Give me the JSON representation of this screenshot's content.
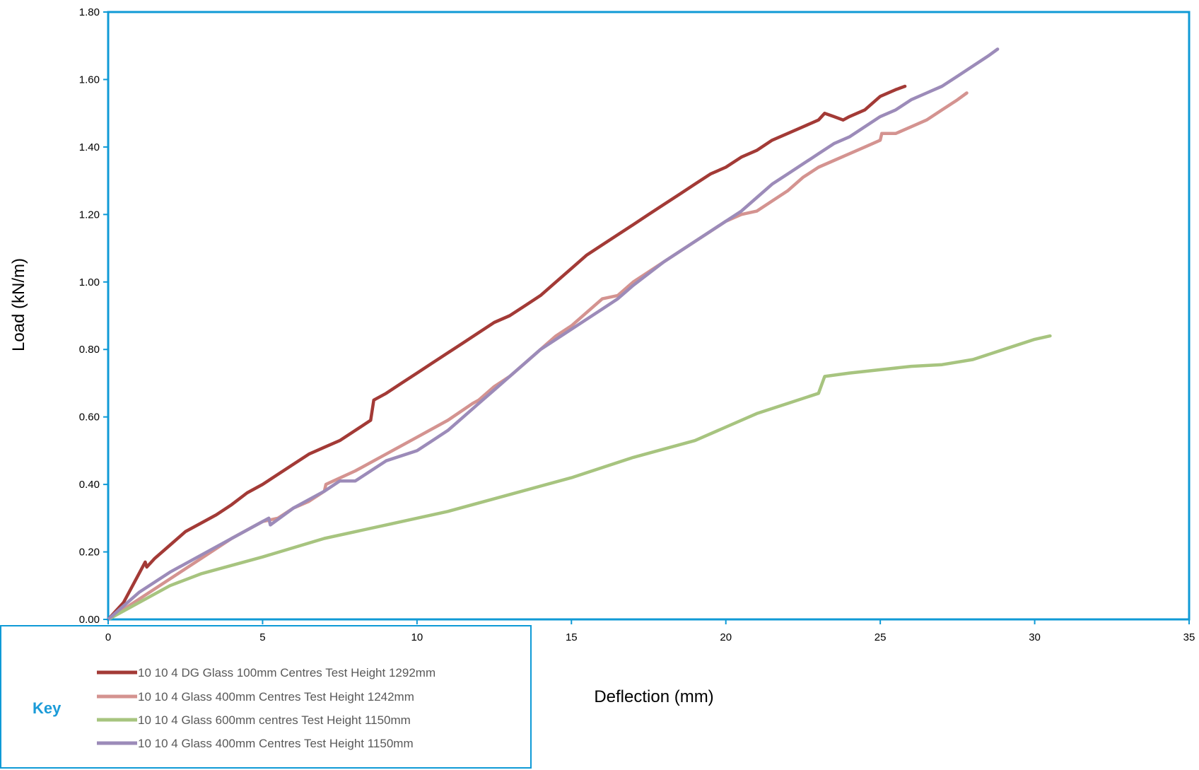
{
  "colors": {
    "frame": "#0f9ad6",
    "key_label": "#1b9bd8",
    "legend_text": "#595959"
  },
  "key_label": "Key",
  "chart_data": {
    "type": "line",
    "title": "",
    "xlabel": "Deflection (mm)",
    "ylabel": "Load (kN/m)",
    "xlim": [
      0,
      35
    ],
    "ylim": [
      0,
      1.8
    ],
    "x_ticks": [
      0,
      5,
      10,
      15,
      20,
      25,
      30,
      35
    ],
    "x_tick_labels": [
      "0",
      "5",
      "10",
      "15",
      "20",
      "25",
      "30",
      "35"
    ],
    "y_ticks": [
      0,
      0.2,
      0.4,
      0.6,
      0.8,
      1.0,
      1.2,
      1.4,
      1.6,
      1.8
    ],
    "y_tick_labels": [
      "0.00",
      "0.20",
      "0.40",
      "0.60",
      "0.80",
      "1.00",
      "1.20",
      "1.40",
      "1.60",
      "1.80"
    ],
    "grid": false,
    "legend_position": "bottom-left",
    "series": [
      {
        "name": "10 10 4 DG Glass 100mm Centres Test Height 1292mm",
        "color": "#a33a36",
        "points": [
          [
            0,
            0
          ],
          [
            0.5,
            0.05
          ],
          [
            1.2,
            0.17
          ],
          [
            1.25,
            0.155
          ],
          [
            1.5,
            0.18
          ],
          [
            2,
            0.22
          ],
          [
            2.5,
            0.26
          ],
          [
            3,
            0.285
          ],
          [
            3.5,
            0.31
          ],
          [
            4,
            0.34
          ],
          [
            4.5,
            0.375
          ],
          [
            5,
            0.4
          ],
          [
            5.5,
            0.43
          ],
          [
            6,
            0.46
          ],
          [
            6.5,
            0.49
          ],
          [
            7,
            0.51
          ],
          [
            7.5,
            0.53
          ],
          [
            8,
            0.56
          ],
          [
            8.5,
            0.59
          ],
          [
            8.6,
            0.65
          ],
          [
            9,
            0.67
          ],
          [
            9.5,
            0.7
          ],
          [
            10,
            0.73
          ],
          [
            10.5,
            0.76
          ],
          [
            11,
            0.79
          ],
          [
            11.5,
            0.82
          ],
          [
            12,
            0.85
          ],
          [
            12.5,
            0.88
          ],
          [
            13,
            0.9
          ],
          [
            13.5,
            0.93
          ],
          [
            14,
            0.96
          ],
          [
            14.5,
            1.0
          ],
          [
            15,
            1.04
          ],
          [
            15.5,
            1.08
          ],
          [
            16,
            1.11
          ],
          [
            16.5,
            1.14
          ],
          [
            17,
            1.17
          ],
          [
            17.5,
            1.2
          ],
          [
            18,
            1.23
          ],
          [
            18.5,
            1.26
          ],
          [
            19,
            1.29
          ],
          [
            19.5,
            1.32
          ],
          [
            20,
            1.34
          ],
          [
            20.5,
            1.37
          ],
          [
            21,
            1.39
          ],
          [
            21.5,
            1.42
          ],
          [
            22,
            1.44
          ],
          [
            22.5,
            1.46
          ],
          [
            23,
            1.48
          ],
          [
            23.2,
            1.5
          ],
          [
            23.5,
            1.49
          ],
          [
            23.8,
            1.48
          ],
          [
            24,
            1.49
          ],
          [
            24.5,
            1.51
          ],
          [
            25,
            1.55
          ],
          [
            25.5,
            1.57
          ],
          [
            25.8,
            1.58
          ]
        ]
      },
      {
        "name": "10 10 4 Glass 400mm Centres Test Height 1242mm",
        "color": "#d49390",
        "points": [
          [
            0,
            0
          ],
          [
            1,
            0.06
          ],
          [
            2,
            0.12
          ],
          [
            3,
            0.18
          ],
          [
            4,
            0.24
          ],
          [
            5,
            0.29
          ],
          [
            5.5,
            0.3
          ],
          [
            6,
            0.33
          ],
          [
            6.5,
            0.35
          ],
          [
            7,
            0.38
          ],
          [
            7.05,
            0.4
          ],
          [
            8,
            0.44
          ],
          [
            9,
            0.49
          ],
          [
            10,
            0.54
          ],
          [
            11,
            0.59
          ],
          [
            11.8,
            0.64
          ],
          [
            12,
            0.65
          ],
          [
            12.5,
            0.69
          ],
          [
            13,
            0.72
          ],
          [
            13.5,
            0.76
          ],
          [
            14,
            0.8
          ],
          [
            14.5,
            0.84
          ],
          [
            15,
            0.87
          ],
          [
            15.5,
            0.91
          ],
          [
            16,
            0.95
          ],
          [
            16.5,
            0.96
          ],
          [
            17,
            1.0
          ],
          [
            17.5,
            1.03
          ],
          [
            18,
            1.06
          ],
          [
            18.5,
            1.09
          ],
          [
            19,
            1.12
          ],
          [
            19.5,
            1.15
          ],
          [
            20,
            1.18
          ],
          [
            20.5,
            1.2
          ],
          [
            21,
            1.21
          ],
          [
            21.5,
            1.24
          ],
          [
            22,
            1.27
          ],
          [
            22.5,
            1.31
          ],
          [
            23,
            1.34
          ],
          [
            23.5,
            1.36
          ],
          [
            24,
            1.38
          ],
          [
            24.5,
            1.4
          ],
          [
            25,
            1.42
          ],
          [
            25.05,
            1.44
          ],
          [
            25.5,
            1.44
          ],
          [
            26,
            1.46
          ],
          [
            26.5,
            1.48
          ],
          [
            27,
            1.51
          ],
          [
            27.5,
            1.54
          ],
          [
            27.8,
            1.56
          ]
        ]
      },
      {
        "name": "10 10 4 Glass 600mm centres Test Height 1150mm",
        "color": "#a7c47f",
        "points": [
          [
            0,
            0
          ],
          [
            1,
            0.05
          ],
          [
            2,
            0.1
          ],
          [
            3,
            0.135
          ],
          [
            5,
            0.185
          ],
          [
            7,
            0.24
          ],
          [
            9,
            0.28
          ],
          [
            11,
            0.32
          ],
          [
            13,
            0.37
          ],
          [
            15,
            0.42
          ],
          [
            17,
            0.48
          ],
          [
            19,
            0.53
          ],
          [
            20,
            0.57
          ],
          [
            21,
            0.61
          ],
          [
            22,
            0.64
          ],
          [
            23,
            0.67
          ],
          [
            23.2,
            0.72
          ],
          [
            24,
            0.73
          ],
          [
            25,
            0.74
          ],
          [
            26,
            0.75
          ],
          [
            27,
            0.755
          ],
          [
            28,
            0.77
          ],
          [
            29,
            0.8
          ],
          [
            30,
            0.83
          ],
          [
            30.5,
            0.84
          ]
        ]
      },
      {
        "name": "10 10 4 Glass 400mm Centres Test Height 1150mm",
        "color": "#9c8bb9",
        "points": [
          [
            0,
            0
          ],
          [
            1,
            0.08
          ],
          [
            2,
            0.14
          ],
          [
            3,
            0.19
          ],
          [
            4,
            0.24
          ],
          [
            5,
            0.29
          ],
          [
            5.2,
            0.3
          ],
          [
            5.25,
            0.28
          ],
          [
            6,
            0.33
          ],
          [
            7,
            0.38
          ],
          [
            7.5,
            0.41
          ],
          [
            8,
            0.41
          ],
          [
            9,
            0.47
          ],
          [
            10,
            0.5
          ],
          [
            10.5,
            0.53
          ],
          [
            11,
            0.56
          ],
          [
            11.5,
            0.6
          ],
          [
            12,
            0.64
          ],
          [
            12.5,
            0.68
          ],
          [
            13,
            0.72
          ],
          [
            13.5,
            0.76
          ],
          [
            14,
            0.8
          ],
          [
            15,
            0.86
          ],
          [
            16,
            0.92
          ],
          [
            16.5,
            0.95
          ],
          [
            17,
            0.99
          ],
          [
            18,
            1.06
          ],
          [
            19,
            1.12
          ],
          [
            20,
            1.18
          ],
          [
            20.5,
            1.21
          ],
          [
            21,
            1.25
          ],
          [
            21.5,
            1.29
          ],
          [
            22,
            1.32
          ],
          [
            22.5,
            1.35
          ],
          [
            23,
            1.38
          ],
          [
            23.5,
            1.41
          ],
          [
            24,
            1.43
          ],
          [
            24.5,
            1.46
          ],
          [
            25,
            1.49
          ],
          [
            25.5,
            1.51
          ],
          [
            26,
            1.54
          ],
          [
            26.5,
            1.56
          ],
          [
            27,
            1.58
          ],
          [
            27.5,
            1.61
          ],
          [
            28,
            1.64
          ],
          [
            28.5,
            1.67
          ],
          [
            28.8,
            1.69
          ]
        ]
      }
    ]
  }
}
